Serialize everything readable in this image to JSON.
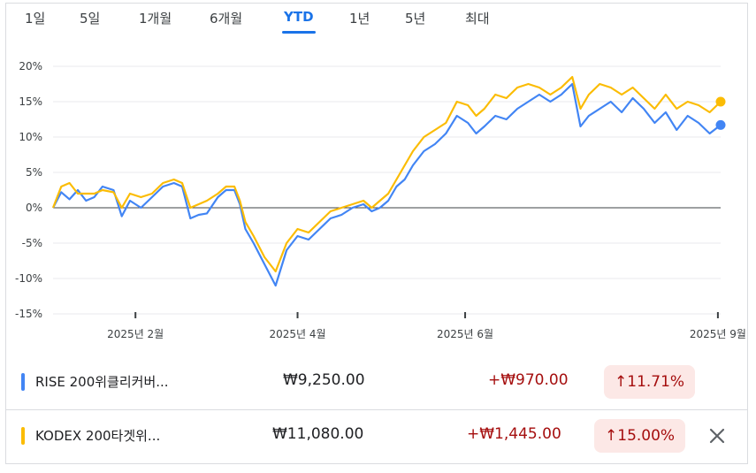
{
  "tabs": [
    {
      "label": "1일",
      "active": false
    },
    {
      "label": "5일",
      "active": false
    },
    {
      "label": "1개월",
      "active": false
    },
    {
      "label": "6개월",
      "active": false
    },
    {
      "label": "YTD",
      "active": true
    },
    {
      "label": "1년",
      "active": false
    },
    {
      "label": "5년",
      "active": false
    },
    {
      "label": "최대",
      "active": false
    }
  ],
  "chart_data": {
    "type": "line",
    "title": "",
    "xlabel": "",
    "ylabel": "",
    "ylim": [
      -15,
      20
    ],
    "yticks": [
      20,
      15,
      10,
      5,
      0,
      -5,
      -10,
      -15
    ],
    "ytick_labels": [
      "20%",
      "15%",
      "10%",
      "5%",
      "0%",
      "-5%",
      "-10%",
      "-15%"
    ],
    "xlim": [
      "2025-01-02",
      "2025-09-02"
    ],
    "xticks": [
      "2025-02-01",
      "2025-04-01",
      "2025-06-01",
      "2025-09-01"
    ],
    "xtick_labels": [
      "2025년 2월",
      "2025년 4월",
      "2025년 6월",
      "2025년 9월"
    ],
    "grid": true,
    "legend": "none",
    "series": [
      {
        "name": "RISE 200위클리커버...",
        "color": "#4285f4",
        "x": [
          "2025-01-02",
          "2025-01-05",
          "2025-01-08",
          "2025-01-11",
          "2025-01-14",
          "2025-01-17",
          "2025-01-20",
          "2025-01-24",
          "2025-01-27",
          "2025-01-30",
          "2025-02-03",
          "2025-02-07",
          "2025-02-11",
          "2025-02-15",
          "2025-02-18",
          "2025-02-21",
          "2025-02-24",
          "2025-02-27",
          "2025-03-03",
          "2025-03-06",
          "2025-03-09",
          "2025-03-11",
          "2025-03-13",
          "2025-03-16",
          "2025-03-20",
          "2025-03-24",
          "2025-03-28",
          "2025-04-01",
          "2025-04-05",
          "2025-04-09",
          "2025-04-13",
          "2025-04-17",
          "2025-04-21",
          "2025-04-25",
          "2025-04-28",
          "2025-05-01",
          "2025-05-04",
          "2025-05-07",
          "2025-05-10",
          "2025-05-13",
          "2025-05-17",
          "2025-05-21",
          "2025-05-25",
          "2025-05-29",
          "2025-06-02",
          "2025-06-05",
          "2025-06-08",
          "2025-06-12",
          "2025-06-16",
          "2025-06-20",
          "2025-06-24",
          "2025-06-28",
          "2025-07-02",
          "2025-07-06",
          "2025-07-10",
          "2025-07-13",
          "2025-07-16",
          "2025-07-20",
          "2025-07-24",
          "2025-07-28",
          "2025-08-01",
          "2025-08-05",
          "2025-08-09",
          "2025-08-13",
          "2025-08-17",
          "2025-08-21",
          "2025-08-25",
          "2025-08-29",
          "2025-09-02"
        ],
        "values": [
          0,
          2.2,
          1.2,
          2.5,
          1.0,
          1.5,
          3.0,
          2.5,
          -1.2,
          1.0,
          0,
          1.5,
          3.0,
          3.5,
          3.0,
          -1.5,
          -1.0,
          -0.8,
          1.5,
          2.5,
          2.5,
          0.5,
          -3.0,
          -5.0,
          -8.0,
          -11.0,
          -6.0,
          -4.0,
          -4.5,
          -3.0,
          -1.5,
          -1.0,
          0,
          0.5,
          -0.5,
          0,
          1.0,
          3.0,
          4.0,
          6.0,
          8.0,
          9.0,
          10.5,
          13.0,
          12.0,
          10.5,
          11.5,
          13.0,
          12.5,
          14.0,
          15.0,
          16.0,
          15.0,
          16.0,
          17.5,
          11.5,
          13.0,
          14.0,
          15.0,
          13.5,
          15.5,
          14.0,
          12.0,
          13.5,
          11.0,
          13.0,
          12.0,
          10.5,
          11.7
        ]
      },
      {
        "name": "KODEX 200타겟위...",
        "color": "#fbbc04",
        "x": [
          "2025-01-02",
          "2025-01-05",
          "2025-01-08",
          "2025-01-11",
          "2025-01-14",
          "2025-01-17",
          "2025-01-20",
          "2025-01-24",
          "2025-01-27",
          "2025-01-30",
          "2025-02-03",
          "2025-02-07",
          "2025-02-11",
          "2025-02-15",
          "2025-02-18",
          "2025-02-21",
          "2025-02-24",
          "2025-02-27",
          "2025-03-03",
          "2025-03-06",
          "2025-03-09",
          "2025-03-11",
          "2025-03-13",
          "2025-03-16",
          "2025-03-20",
          "2025-03-24",
          "2025-03-28",
          "2025-04-01",
          "2025-04-05",
          "2025-04-09",
          "2025-04-13",
          "2025-04-17",
          "2025-04-21",
          "2025-04-25",
          "2025-04-28",
          "2025-05-01",
          "2025-05-04",
          "2025-05-07",
          "2025-05-10",
          "2025-05-13",
          "2025-05-17",
          "2025-05-21",
          "2025-05-25",
          "2025-05-29",
          "2025-06-02",
          "2025-06-05",
          "2025-06-08",
          "2025-06-12",
          "2025-06-16",
          "2025-06-20",
          "2025-06-24",
          "2025-06-28",
          "2025-07-02",
          "2025-07-06",
          "2025-07-10",
          "2025-07-13",
          "2025-07-16",
          "2025-07-20",
          "2025-07-24",
          "2025-07-28",
          "2025-08-01",
          "2025-08-05",
          "2025-08-09",
          "2025-08-13",
          "2025-08-17",
          "2025-08-21",
          "2025-08-25",
          "2025-08-29",
          "2025-09-02"
        ],
        "values": [
          0,
          3.0,
          3.5,
          2.0,
          2.0,
          2.0,
          2.5,
          2.2,
          0,
          2.0,
          1.5,
          2.0,
          3.5,
          4.0,
          3.5,
          0,
          0.5,
          1.0,
          2.0,
          3.0,
          3.0,
          1.0,
          -2.0,
          -4.0,
          -7.0,
          -9.0,
          -5.0,
          -3.0,
          -3.5,
          -2.0,
          -0.5,
          0,
          0.5,
          1.0,
          0,
          1.0,
          2.0,
          4.0,
          6.0,
          8.0,
          10.0,
          11.0,
          12.0,
          15.0,
          14.5,
          13.0,
          14.0,
          16.0,
          15.5,
          17.0,
          17.5,
          17.0,
          16.0,
          17.0,
          18.5,
          14.0,
          16.0,
          17.5,
          17.0,
          16.0,
          17.0,
          15.5,
          14.0,
          16.0,
          14.0,
          15.0,
          14.5,
          13.5,
          15.0
        ]
      }
    ]
  },
  "rows": [
    {
      "name": "RISE 200위클리커버...",
      "price": "₩9,250.00",
      "change": "+₩970.00",
      "percent": "11.71%",
      "color": "#4285f4"
    },
    {
      "name": "KODEX 200타겟위...",
      "price": "₩11,080.00",
      "change": "+₩1,445.00",
      "percent": "15.00%",
      "color": "#fbbc04"
    }
  ],
  "icons": {
    "up_arrow": "arrow-up-icon",
    "close": "close-icon"
  }
}
